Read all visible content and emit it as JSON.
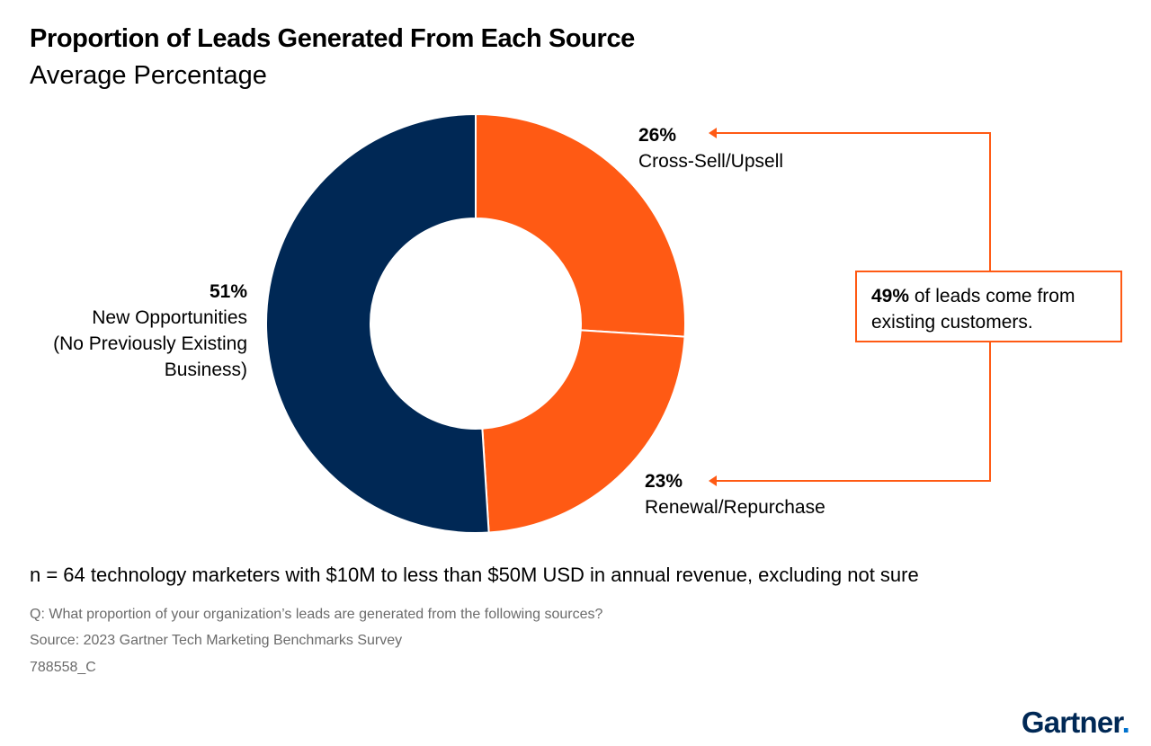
{
  "chart_data": {
    "type": "pie",
    "variant": "donut",
    "title": "Proportion of Leads Generated From Each Source",
    "subtitle": "Average Percentage",
    "slices": [
      {
        "label": "Cross-Sell/Upsell",
        "value": 26,
        "display": "26%",
        "color": "#ff5a14"
      },
      {
        "label": "Renewal/Repurchase",
        "value": 23,
        "display": "23%",
        "color": "#ff5a14"
      },
      {
        "label_lines": [
          "New Opportunities",
          "(No Previously Existing",
          "Business)"
        ],
        "value": 51,
        "display": "51%",
        "color": "#002855"
      }
    ],
    "annotation": {
      "highlight": "49%",
      "text": "of leads come from",
      "text2": "existing customers."
    }
  },
  "footer": {
    "note": "n = 64 technology marketers with $10M to less than $50M USD in annual revenue, excluding not sure",
    "question": "Q: What proportion of your organization’s leads are generated from the following sources?",
    "source": "Source: 2023 Gartner Tech Marketing Benchmarks Survey",
    "id": "788558_C"
  },
  "brand": {
    "name": "Gartner",
    "dot": "."
  },
  "colors": {
    "orange": "#ff5a14",
    "navy": "#002855",
    "gray": "#6b6b6b"
  }
}
